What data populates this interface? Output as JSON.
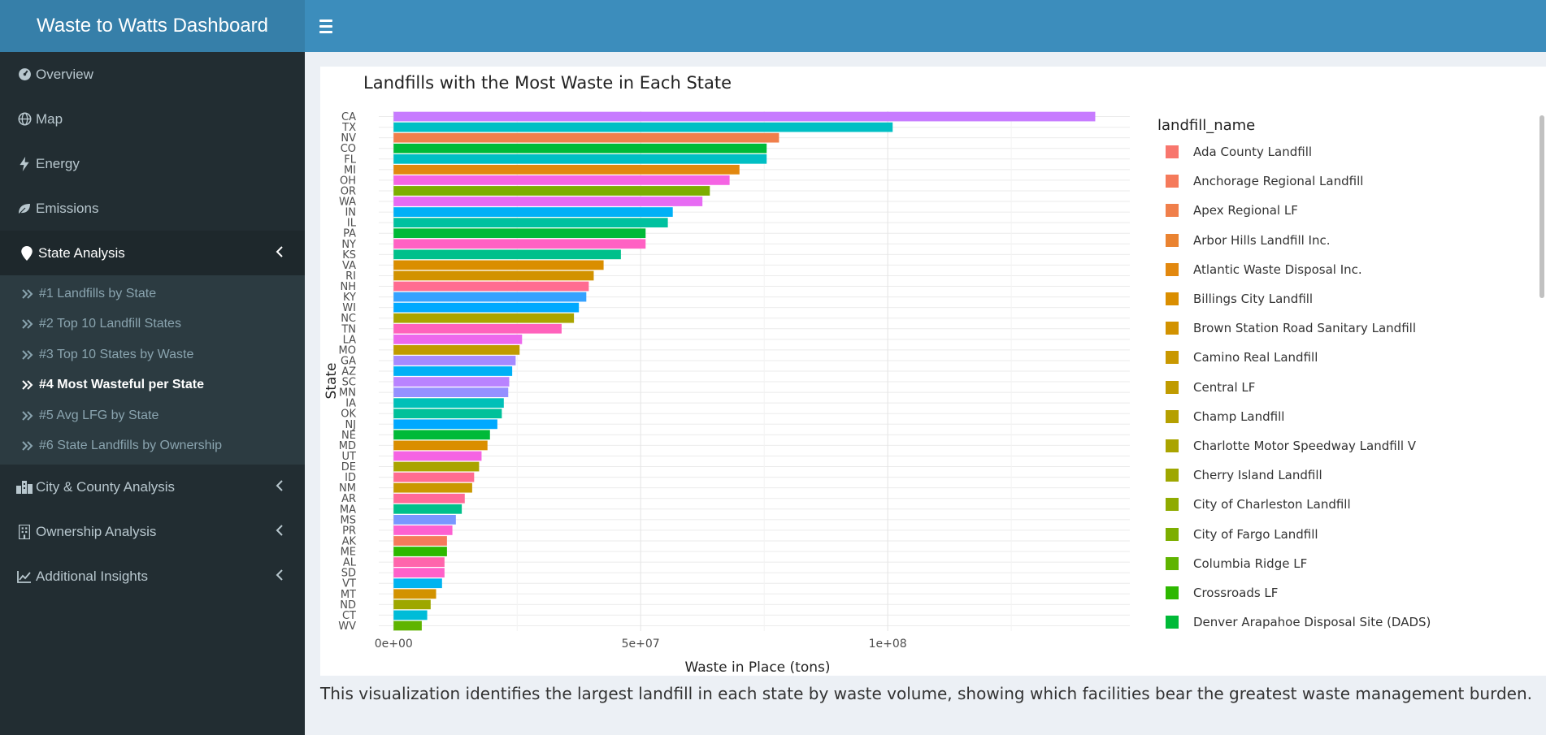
{
  "app": {
    "title": "Waste to Watts Dashboard"
  },
  "sidebar": {
    "items": [
      {
        "label": "Overview",
        "icon": "dashboard-icon"
      },
      {
        "label": "Map",
        "icon": "globe-icon"
      },
      {
        "label": "Energy",
        "icon": "bolt-icon"
      },
      {
        "label": "Emissions",
        "icon": "leaf-icon"
      },
      {
        "label": "State Analysis",
        "icon": "map-marker-icon"
      },
      {
        "label": "City & County Analysis",
        "icon": "city-icon"
      },
      {
        "label": "Ownership Analysis",
        "icon": "building-icon"
      },
      {
        "label": "Additional Insights",
        "icon": "line-chart-icon"
      }
    ],
    "submenu": [
      {
        "label": "#1 Landfills by State"
      },
      {
        "label": "#2 Top 10 Landfill States"
      },
      {
        "label": "#3 Top 10 States by Waste"
      },
      {
        "label": "#4 Most Wasteful per State"
      },
      {
        "label": "#5 Avg LFG by State"
      },
      {
        "label": "#6 State Landfills by Ownership"
      }
    ]
  },
  "caption": "This visualization identifies the largest landfill in each state by waste volume, showing which facilities bear the greatest waste management burden.",
  "legend": {
    "title": "landfill_name",
    "items": [
      {
        "label": "Ada County Landfill",
        "color": "#f8766d"
      },
      {
        "label": "Anchorage Regional Landfill",
        "color": "#f57a5b"
      },
      {
        "label": "Apex Regional LF",
        "color": "#f07f4b"
      },
      {
        "label": "Arbor Hills Landfill Inc.",
        "color": "#ea8331"
      },
      {
        "label": "Atlantic Waste Disposal Inc.",
        "color": "#e2880f"
      },
      {
        "label": "Billings City Landfill",
        "color": "#da8e00"
      },
      {
        "label": "Brown Station Road Sanitary Landfill",
        "color": "#d29200"
      },
      {
        "label": "Camino Real Landfill",
        "color": "#c99800"
      },
      {
        "label": "Central LF",
        "color": "#c09b00"
      },
      {
        "label": "Champ Landfill",
        "color": "#b5a000"
      },
      {
        "label": "Charlotte Motor Speedway Landfill V",
        "color": "#aaa400"
      },
      {
        "label": "Cherry Island Landfill",
        "color": "#9ea700"
      },
      {
        "label": "City of Charleston Landfill",
        "color": "#8fab00"
      },
      {
        "label": "City of Fargo Landfill",
        "color": "#7cae00"
      },
      {
        "label": "Columbia Ridge LF",
        "color": "#5fb400"
      },
      {
        "label": "Crossroads LF",
        "color": "#2db800"
      },
      {
        "label": "Denver Arapahoe Disposal Site (DADS)",
        "color": "#00ba38"
      }
    ]
  },
  "chart_data": {
    "type": "bar",
    "orientation": "horizontal",
    "title": "Landfills with the Most Waste in Each State",
    "xlabel": "Waste in Place (tons)",
    "ylabel": "State",
    "xlim": [
      -3000000,
      149000000
    ],
    "xticks": [
      {
        "value": 0,
        "label": "0e+00"
      },
      {
        "value": 50000000,
        "label": "5e+07"
      },
      {
        "value": 100000000,
        "label": "1e+08"
      }
    ],
    "grid": true,
    "legend_position": "right",
    "categories": [
      "CA",
      "TX",
      "NV",
      "CO",
      "FL",
      "MI",
      "OH",
      "OR",
      "WA",
      "IN",
      "IL",
      "PA",
      "NY",
      "KS",
      "VA",
      "RI",
      "NH",
      "KY",
      "WI",
      "NC",
      "TN",
      "LA",
      "MO",
      "GA",
      "AZ",
      "SC",
      "MN",
      "IA",
      "OK",
      "NJ",
      "NE",
      "MD",
      "UT",
      "DE",
      "ID",
      "NM",
      "AR",
      "MA",
      "MS",
      "PR",
      "AK",
      "ME",
      "AL",
      "SD",
      "VT",
      "MT",
      "ND",
      "CT",
      "WV"
    ],
    "values": [
      142000000,
      101000000,
      78000000,
      75500000,
      75500000,
      70000000,
      68000000,
      64000000,
      62500000,
      56500000,
      55500000,
      51000000,
      51000000,
      46000000,
      42500000,
      40500000,
      39500000,
      39000000,
      37500000,
      36500000,
      34000000,
      26000000,
      25500000,
      24700000,
      24000000,
      23400000,
      23200000,
      22300000,
      21900000,
      21000000,
      19500000,
      19000000,
      17800000,
      17300000,
      16300000,
      15900000,
      14400000,
      13800000,
      12600000,
      11900000,
      10800000,
      10800000,
      10300000,
      10300000,
      9800000,
      8600000,
      7500000,
      6800000,
      5700000
    ],
    "colors": [
      "#c77cff",
      "#00bfc4",
      "#f07f4b",
      "#00ba38",
      "#00bfc4",
      "#e2880f",
      "#f564e3",
      "#7cae00",
      "#e76bf3",
      "#00b0f6",
      "#00c19f",
      "#00ba38",
      "#ff61c3",
      "#00c08b",
      "#da8e00",
      "#d29200",
      "#ff6c91",
      "#35a2ff",
      "#00a9ff",
      "#aaa400",
      "#ff62bc",
      "#ed68ed",
      "#c09b00",
      "#a58aff",
      "#00b0f6",
      "#b983ff",
      "#9590ff",
      "#00c0b8",
      "#00c19a",
      "#00a9ff",
      "#00ba38",
      "#da8e00",
      "#f564e3",
      "#aaa400",
      "#ff6c91",
      "#c99800",
      "#ff6a98",
      "#00c08b",
      "#7997ff",
      "#fd61d1",
      "#f57a5b",
      "#2db800",
      "#ff65ac",
      "#ff61c9",
      "#00b4f0",
      "#d29200",
      "#9ea700",
      "#00bcd8",
      "#5fb400"
    ]
  }
}
